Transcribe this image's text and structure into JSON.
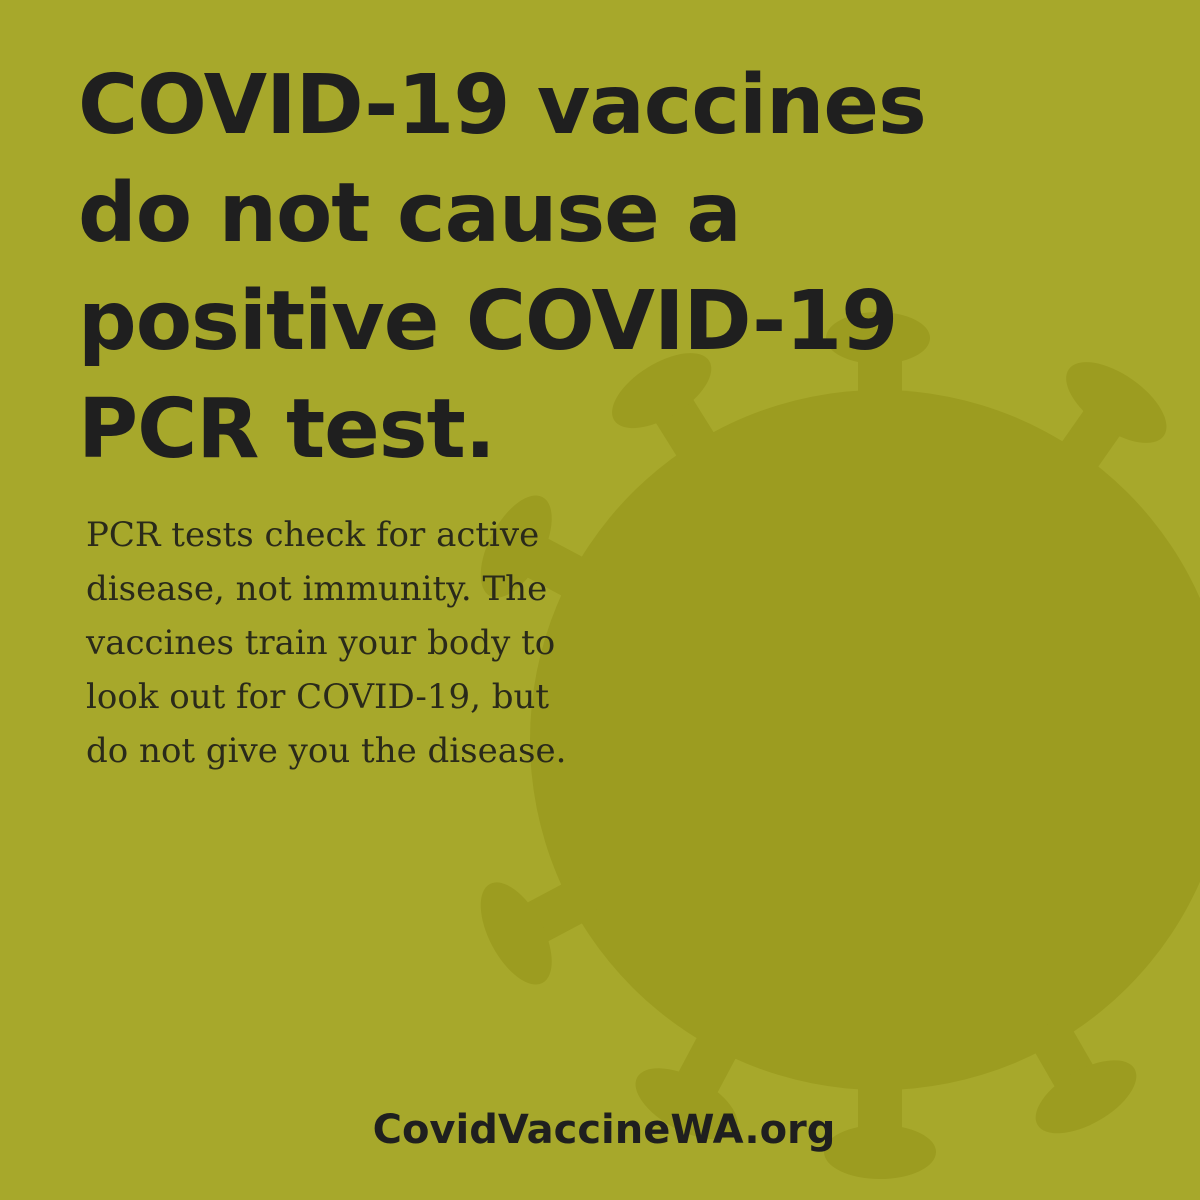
{
  "background_color": "#a7a82b",
  "accent_shape_color": "#9c9c20",
  "text_color": "#1f1f1f",
  "decoration": {
    "icon": "coronavirus-icon"
  },
  "headline": {
    "lines": [
      "COVID-19 vaccines",
      "do not cause a",
      "positive COVID-19",
      "PCR test."
    ]
  },
  "body": {
    "lines": [
      "PCR tests check for active",
      "disease, not immunity. The",
      "vaccines train your body to",
      "look out for COVID-19, but",
      "do not give you the disease."
    ]
  },
  "footer": {
    "link_text": "CovidVaccineWA.org"
  }
}
